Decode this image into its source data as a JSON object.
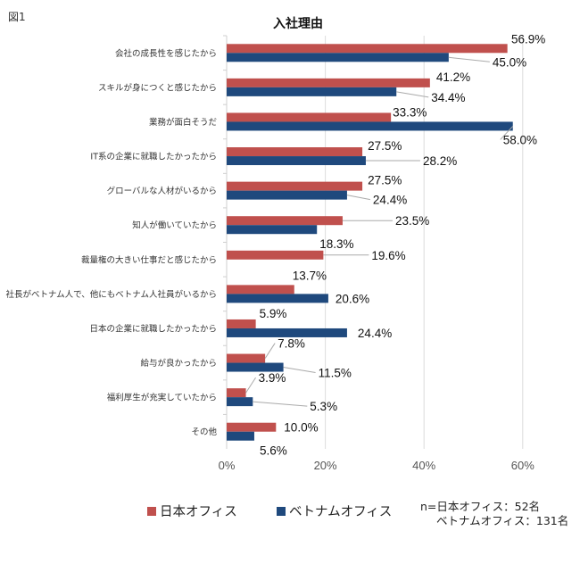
{
  "figure_label": "図1",
  "chart_data": {
    "type": "bar",
    "orientation": "horizontal",
    "title": "入社理由",
    "xlabel": "",
    "ylabel": "",
    "xlim": [
      0,
      62
    ],
    "x_ticks": [
      0,
      20,
      40,
      60
    ],
    "x_tick_labels": [
      "0%",
      "20%",
      "40%",
      "60%"
    ],
    "grid": true,
    "legend_position": "bottom",
    "categories": [
      "会社の成長性を感じたから",
      "スキルが身につくと感じたから",
      "業務が面白そうだ",
      "IT系の企業に就職したかったから",
      "グローバルな人材がいるから",
      "知人が働いていたから",
      "裁量権の大きい仕事だと感じたから",
      "社長がベトナム人で、他にもベトナム人社員がいるから",
      "日本の企業に就職したかったから",
      "給与が良かったから",
      "福利厚生が充実していたから",
      "その他"
    ],
    "series": [
      {
        "name": "日本オフィス",
        "color": "#C0504D",
        "values": [
          56.9,
          41.2,
          33.3,
          27.5,
          27.5,
          23.5,
          19.6,
          13.7,
          5.9,
          7.8,
          3.9,
          10.0
        ],
        "labels": [
          "56.9%",
          "41.2%",
          "33.3%",
          "27.5%",
          "27.5%",
          "23.5%",
          "19.6%",
          "13.7%",
          "5.9%",
          "7.8%",
          "3.9%",
          "10.0%"
        ]
      },
      {
        "name": "ベトナムオフィス",
        "color": "#1F497D",
        "values": [
          45.0,
          34.4,
          58.0,
          28.2,
          24.4,
          18.3,
          0,
          20.6,
          24.4,
          11.5,
          5.3,
          5.6
        ],
        "labels": [
          "45.0%",
          "34.4%",
          "58.0%",
          "28.2%",
          "24.4%",
          "18.3%",
          "",
          "20.6%",
          "24.4%",
          "11.5%",
          "5.3%",
          "5.6%"
        ]
      }
    ]
  },
  "legend": {
    "items": [
      "日本オフィス",
      "ベトナムオフィス"
    ]
  },
  "note": {
    "line1": "n=日本オフィス：52名",
    "line2": "ベトナムオフィス：131名"
  }
}
